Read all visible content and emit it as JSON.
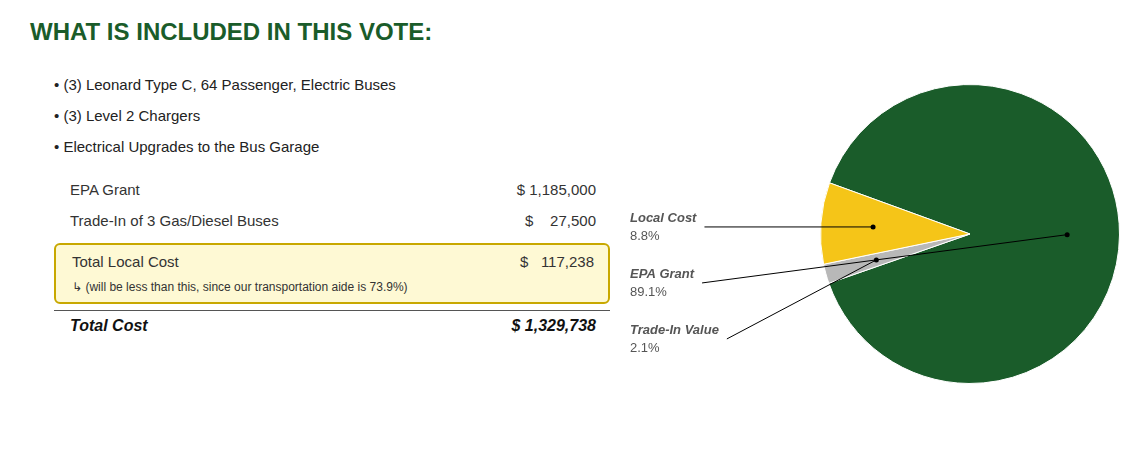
{
  "chart_data": {
    "type": "pie",
    "title": "WHAT IS INCLUDED IN THIS VOTE:",
    "categories": [
      "EPA Grant",
      "Trade-In Value",
      "Local Cost"
    ],
    "values": [
      89.1,
      2.1,
      8.8
    ],
    "value_labels": [
      "89.1%",
      "2.1%",
      "8.8%"
    ],
    "colors": [
      "#1a5c2a",
      "#b8b8b8",
      "#f5c518"
    ],
    "data_labels": true,
    "annotations": [
      [
        "• (3) Leonard Type C, 64 Passenger, Electric Buses"
      ],
      [
        "• (3) Level 2 Chargers"
      ],
      [
        "• Electrical Upgrades to the Bus Garage"
      ],
      [
        "EPA Grant",
        "$ 1,185,000"
      ],
      [
        "Trade-In of 3 Gas/Diesel Buses",
        "$    27,500"
      ],
      [
        "Total Local Cost",
        "$   117,238"
      ],
      [
        "↳ (will be less than this, since our transportation aide is 73.9%)"
      ],
      [
        "Total Cost",
        "$ 1,329,738"
      ]
    ]
  }
}
